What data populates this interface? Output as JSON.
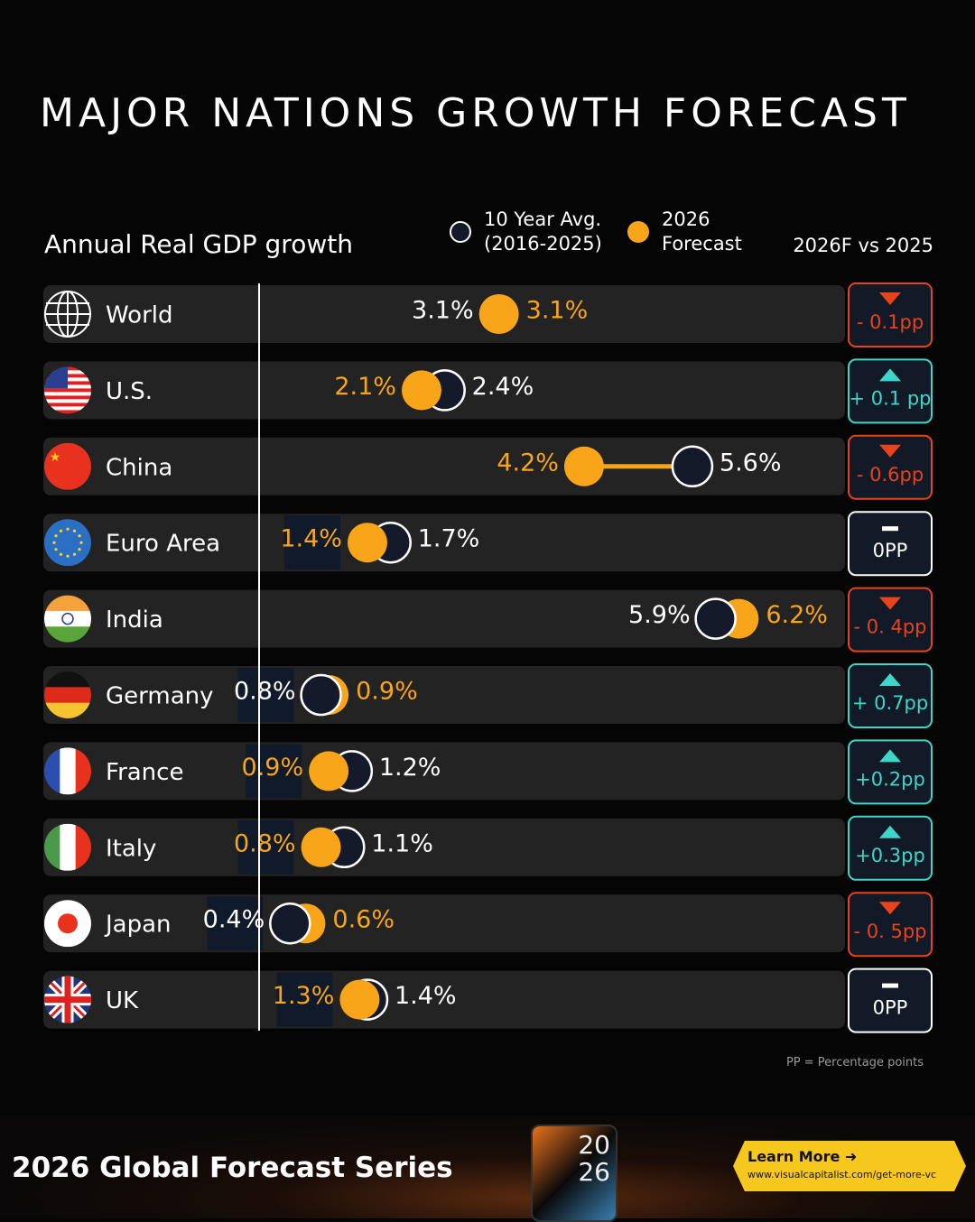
{
  "chart_data": {
    "type": "dot",
    "title": "MAJOR NATIONS GROWTH FORECAST",
    "subtitle": "Annual Real GDP growth",
    "legend": [
      {
        "name": "10 Year Avg.\n(2016-2025)",
        "style": "hollow",
        "color": "#141a2a"
      },
      {
        "name": "2026\nForecast",
        "style": "filled",
        "color": "#f9a51a"
      }
    ],
    "comparison_header": "2026F vs 2025",
    "categories": [
      "World",
      "U.S.",
      "China",
      "Euro Area",
      "India",
      "Germany",
      "France",
      "Italy",
      "Japan",
      "UK"
    ],
    "flags": [
      "globe-icon",
      "us-flag-icon",
      "china-flag-icon",
      "eu-flag-icon",
      "india-flag-icon",
      "germany-flag-icon",
      "france-flag-icon",
      "italy-flag-icon",
      "japan-flag-icon",
      "uk-flag-icon"
    ],
    "series": [
      {
        "name": "10 Year Avg. (2016-2025)",
        "values": [
          3.1,
          2.4,
          5.6,
          1.7,
          5.9,
          0.8,
          1.2,
          1.1,
          0.4,
          1.4
        ],
        "labels": [
          "3.1%",
          "2.4%",
          "5.6%",
          "1.7%",
          "5.9%",
          "0.8%",
          "1.2%",
          "1.1%",
          "0.4%",
          "1.4%"
        ]
      },
      {
        "name": "2026 Forecast",
        "values": [
          3.1,
          2.1,
          4.2,
          1.4,
          6.2,
          0.9,
          0.9,
          0.8,
          0.6,
          1.3
        ],
        "labels": [
          "3.1%",
          "2.1%",
          "4.2%",
          "1.4%",
          "6.2%",
          "0.9%",
          "0.9%",
          "0.8%",
          "0.6%",
          "1.3%"
        ]
      }
    ],
    "changes": [
      {
        "label": "- 0.1pp",
        "direction": "down"
      },
      {
        "label": "+ 0.1 pp",
        "direction": "up"
      },
      {
        "label": "- 0.6pp",
        "direction": "down"
      },
      {
        "label": "0PP",
        "direction": "flat"
      },
      {
        "label": "- 0. 4pp",
        "direction": "down"
      },
      {
        "label": "+ 0.7pp",
        "direction": "up"
      },
      {
        "label": "+0.2pp",
        "direction": "up"
      },
      {
        "label": "+0.3pp",
        "direction": "up"
      },
      {
        "label": "- 0. 5pp",
        "direction": "down"
      },
      {
        "label": "0PP",
        "direction": "flat"
      }
    ],
    "colors": {
      "down": "#e8431a",
      "up": "#3dd6c8",
      "flat": "#ffffff",
      "forecast": "#f9a51a",
      "average": "#141a2a",
      "row": "#232323"
    },
    "note": "PP = Percentage points"
  },
  "banner": {
    "title": "2026 Global Forecast Series",
    "phone_text": "20\n26",
    "cta_label": "Learn More ➜",
    "cta_url": "www.visualcapitalist.com/get-more-vc"
  }
}
